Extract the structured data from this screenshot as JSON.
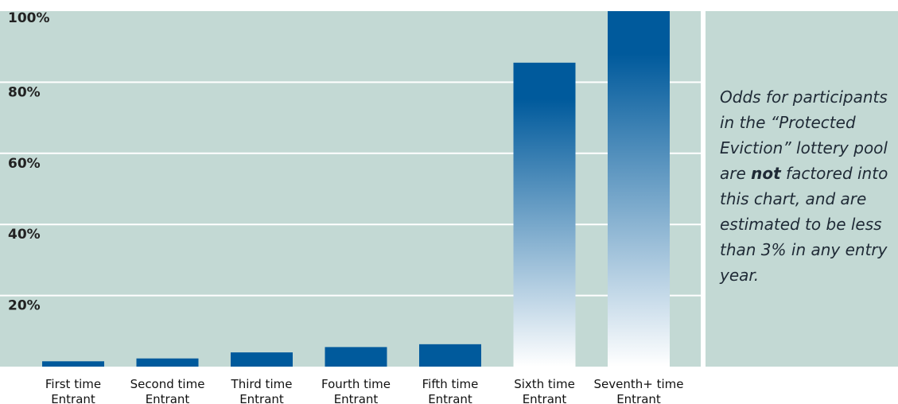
{
  "chart_data": {
    "type": "bar",
    "categories": [
      [
        "First time",
        "Entrant"
      ],
      [
        "Second time",
        "Entrant"
      ],
      [
        "Third time",
        "Entrant"
      ],
      [
        "Fourth time",
        "Entrant"
      ],
      [
        "Fifth time",
        "Entrant"
      ],
      [
        "Sixth time",
        "Entrant"
      ],
      [
        "Seventh+ time",
        "Entrant"
      ]
    ],
    "values": [
      1.5,
      2.3,
      4.0,
      5.5,
      6.3,
      85.5,
      100
    ],
    "ylim": [
      0,
      100
    ],
    "yticks": [
      20,
      40,
      60,
      80,
      100
    ],
    "ytick_labels": [
      "20%",
      "40%",
      "60%",
      "80%",
      "100%"
    ],
    "grid": true,
    "colors": {
      "plot_bg": "#c3d9d4",
      "grid": "#ffffff",
      "bar_top": "#005a9c",
      "bar_bottom": "#ffffff"
    }
  },
  "note": {
    "before": "Odds for participants in the “Protected Eviction” lottery pool are ",
    "bold": "not",
    "after": " factored into this chart, and are estimated to be less than 3%  in any entry year."
  }
}
